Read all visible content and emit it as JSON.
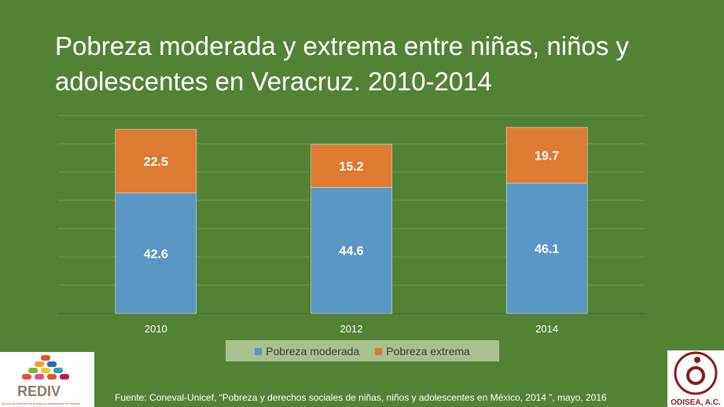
{
  "title": "Pobreza moderada y extrema entre niñas, niños y adolescentes en Veracruz. 2010-2014",
  "chart_data": {
    "type": "bar",
    "stacked": true,
    "categories": [
      "2010",
      "2012",
      "2014"
    ],
    "series": [
      {
        "name": "Pobreza moderada",
        "values": [
          42.6,
          44.6,
          46.1
        ],
        "color": "#5b97c4"
      },
      {
        "name": "Pobreza extrema",
        "values": [
          22.5,
          15.2,
          19.7
        ],
        "color": "#dc7b31"
      }
    ],
    "ylim": [
      0,
      70
    ],
    "grid": true,
    "legend": "bottom",
    "data_labels": true
  },
  "source": "Fuente: Coneval-Unicef, “Pobreza y derechos sociales de niñas, niños y adolescentes en México, 2014 ”, mayo, 2016",
  "logos": {
    "left": {
      "name": "REDIV",
      "tagline": "Red por los Derechos de la Infancia y Adolescencia en Veracruz"
    },
    "right": {
      "name": "ODISEA, A.C."
    }
  }
}
